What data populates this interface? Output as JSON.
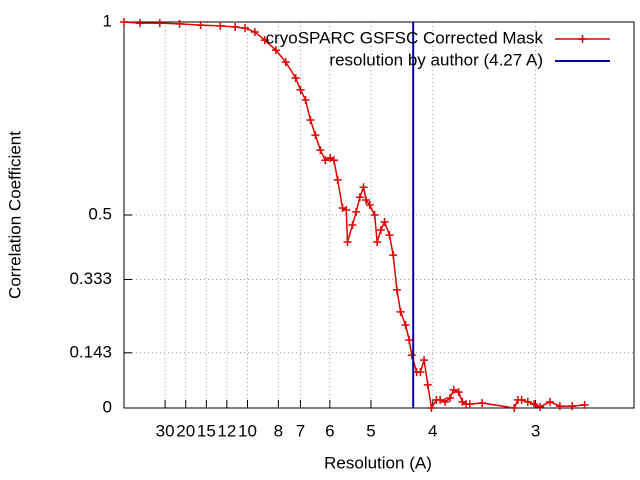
{
  "chart_data": {
    "type": "line",
    "xlabel": "Resolution (A)",
    "ylabel": "Correlation Coefficient",
    "xlim": [
      0,
      0.413
    ],
    "ylim": [
      0,
      1
    ],
    "xticks": [
      {
        "value": 0.0333,
        "label": "30"
      },
      {
        "value": 0.05,
        "label": "20"
      },
      {
        "value": 0.0667,
        "label": "15"
      },
      {
        "value": 0.0833,
        "label": "12"
      },
      {
        "value": 0.1,
        "label": "10"
      },
      {
        "value": 0.125,
        "label": "8"
      },
      {
        "value": 0.1429,
        "label": "7"
      },
      {
        "value": 0.1667,
        "label": "6"
      },
      {
        "value": 0.2,
        "label": "5"
      },
      {
        "value": 0.25,
        "label": "4"
      },
      {
        "value": 0.3333,
        "label": "3"
      }
    ],
    "yticks": [
      0,
      0.143,
      0.333,
      0.5,
      1
    ],
    "grid": true,
    "legend": "top-right",
    "series": [
      {
        "name": "cryoSPARC GSFSC Corrected Mask",
        "color": "#e00000",
        "x": [
          0,
          0.013,
          0.029,
          0.045,
          0.062,
          0.078,
          0.09,
          0.098,
          0.106,
          0.114,
          0.123,
          0.131,
          0.139,
          0.143,
          0.147,
          0.151,
          0.155,
          0.159,
          0.163,
          0.167,
          0.17,
          0.173,
          0.177,
          0.18,
          0.181,
          0.185,
          0.188,
          0.191,
          0.194,
          0.196,
          0.199,
          0.203,
          0.205,
          0.208,
          0.211,
          0.215,
          0.218,
          0.221,
          0.224,
          0.228,
          0.231,
          0.233,
          0.237,
          0.24,
          0.243,
          0.246,
          0.249,
          0.253,
          0.256,
          0.26,
          0.264,
          0.267,
          0.271,
          0.274,
          0.277,
          0.28,
          0.29,
          0.316,
          0.319,
          0.322,
          0.327,
          0.332,
          0.337,
          0.345,
          0.353,
          0.363,
          0.373
        ],
        "values": [
          1.0,
          0.997,
          0.997,
          0.995,
          0.992,
          0.99,
          0.987,
          0.984,
          0.974,
          0.953,
          0.927,
          0.896,
          0.855,
          0.824,
          0.798,
          0.746,
          0.707,
          0.668,
          0.642,
          0.648,
          0.642,
          0.591,
          0.518,
          0.513,
          0.43,
          0.474,
          0.508,
          0.546,
          0.572,
          0.539,
          0.526,
          0.5,
          0.43,
          0.461,
          0.482,
          0.448,
          0.396,
          0.306,
          0.249,
          0.215,
          0.176,
          0.137,
          0.093,
          0.093,
          0.124,
          0.06,
          0.0,
          0.021,
          0.021,
          0.016,
          0.026,
          0.047,
          0.041,
          0.016,
          0.01,
          0.01,
          0.013,
          0.0,
          0.021,
          0.021,
          0.016,
          0.01,
          0.003,
          0.016,
          0.005,
          0.005,
          0.008
        ]
      }
    ],
    "vline": {
      "name": "resolution by author (4.27 A)",
      "color": "#0000a0",
      "x": 0.2342
    }
  }
}
